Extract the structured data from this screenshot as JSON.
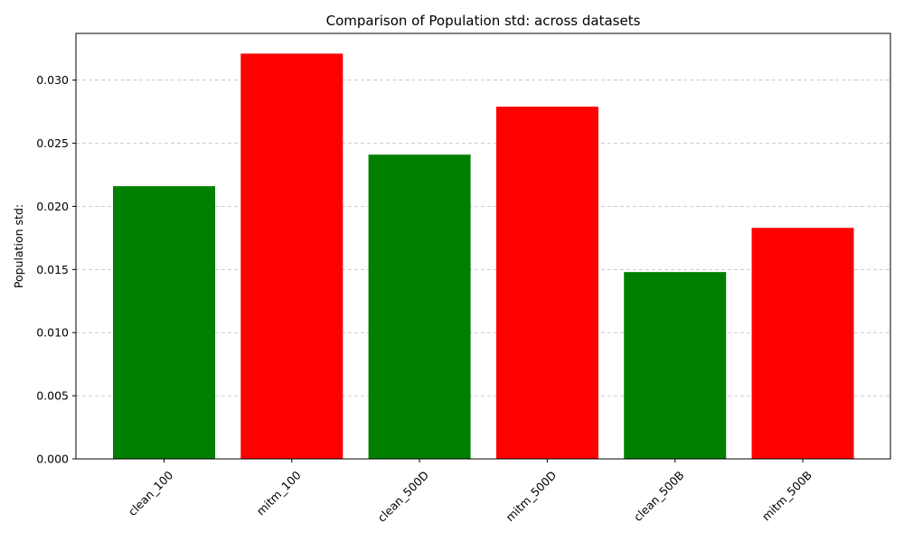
{
  "chart_data": {
    "type": "bar",
    "title": "Comparison of Population std: across datasets",
    "xlabel": "",
    "ylabel": "Population std:",
    "categories": [
      "clean_100",
      "mitm_100",
      "clean_500D",
      "mitm_500D",
      "clean_500B",
      "mitm_500B"
    ],
    "values": [
      0.0216,
      0.0321,
      0.0241,
      0.0279,
      0.0148,
      0.0183
    ],
    "bar_colors": [
      "#008000",
      "#ff0000",
      "#008000",
      "#ff0000",
      "#008000",
      "#ff0000"
    ],
    "ylim": [
      0,
      0.0337
    ],
    "yticks": [
      0.0,
      0.005,
      0.01,
      0.015,
      0.02,
      0.025,
      0.03
    ],
    "ytick_labels": [
      "0.000",
      "0.005",
      "0.010",
      "0.015",
      "0.020",
      "0.025",
      "0.030"
    ],
    "grid": "y, dashed",
    "legend": "none"
  }
}
